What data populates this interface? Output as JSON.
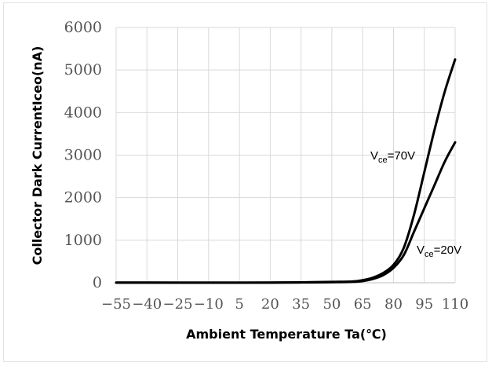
{
  "chart_data": {
    "type": "line",
    "title": "",
    "xlabel": "Ambient Temperature Ta(℃)",
    "ylabel": "Collector Dark CurrentIceo(nA)",
    "xlim": [
      -55,
      110
    ],
    "ylim": [
      0,
      6000
    ],
    "x_ticks": [
      "-55",
      "-40",
      "-25",
      "-10",
      "5",
      "20",
      "35",
      "50",
      "65",
      "80",
      "95",
      "110"
    ],
    "y_ticks": [
      "0",
      "1000",
      "2000",
      "3000",
      "4000",
      "5000",
      "6000"
    ],
    "grid": true,
    "line_color": "#000000",
    "grid_color": "#d9d9d9",
    "series": [
      {
        "name": "Vce=70V",
        "label_main": "V",
        "label_sub": "ce",
        "label_tail": "=70V",
        "x": [
          -55,
          -40,
          -25,
          -10,
          5,
          20,
          35,
          50,
          60,
          65,
          70,
          75,
          80,
          85,
          90,
          95,
          100,
          105,
          110
        ],
        "y": [
          5,
          4,
          3,
          3,
          3,
          5,
          10,
          20,
          30,
          60,
          120,
          230,
          420,
          820,
          1600,
          2600,
          3600,
          4500,
          5250
        ]
      },
      {
        "name": "Vce=20V",
        "label_main": "V",
        "label_sub": "ce",
        "label_tail": "=20V",
        "x": [
          -55,
          -40,
          -25,
          -10,
          5,
          20,
          35,
          50,
          60,
          65,
          70,
          75,
          80,
          85,
          90,
          95,
          100,
          105,
          110
        ],
        "y": [
          3,
          2,
          2,
          2,
          2,
          3,
          6,
          12,
          20,
          40,
          90,
          180,
          350,
          650,
          1200,
          1750,
          2300,
          2850,
          3300
        ]
      }
    ]
  }
}
